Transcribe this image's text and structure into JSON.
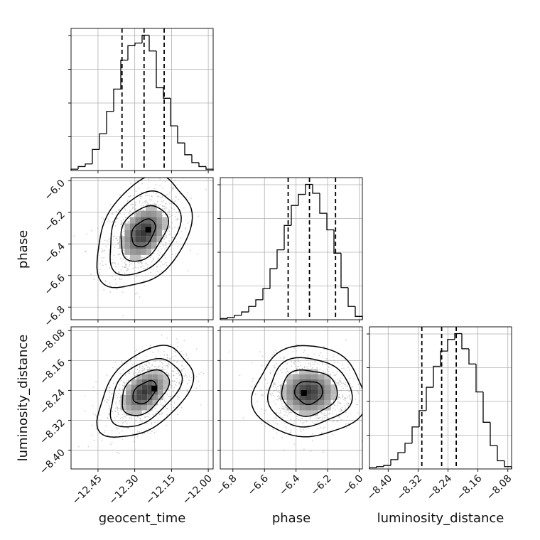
{
  "chart_data": {
    "type": "corner",
    "parameters": [
      "geocent_time",
      "phase",
      "luminosity_distance"
    ],
    "axis_labels": {
      "x": [
        "geocent_time",
        "phase",
        "luminosity_distance"
      ],
      "y_row2": "phase",
      "y_row3": "luminosity_distance"
    },
    "ticks": {
      "geocent_time": {
        "values": [
          -12.45,
          -12.3,
          -12.15,
          -12.0
        ],
        "labels": [
          "−12.45",
          "−12.30",
          "−12.15",
          "−12.00"
        ]
      },
      "phase": {
        "values": [
          -6.8,
          -6.6,
          -6.4,
          -6.2,
          -6.0
        ],
        "labels": [
          "−6.8",
          "−6.6",
          "−6.4",
          "−6.2",
          "−6.0"
        ]
      },
      "luminosity_distance": {
        "values": [
          -8.4,
          -8.32,
          -8.24,
          -8.16,
          -8.08
        ],
        "labels": [
          "−8.40",
          "−8.32",
          "−8.24",
          "−8.16",
          "−8.08"
        ]
      }
    },
    "ranges": {
      "geocent_time": [
        -12.56,
        -11.98
      ],
      "phase": [
        -6.88,
        -5.98
      ],
      "luminosity_distance": [
        -8.45,
        -8.07
      ]
    },
    "histograms": {
      "geocent_time": {
        "edges": [
          -12.56,
          -12.531,
          -12.502,
          -12.473,
          -12.444,
          -12.415,
          -12.386,
          -12.357,
          -12.328,
          -12.299,
          -12.27,
          -12.241,
          -12.212,
          -12.183,
          -12.154,
          -12.125,
          -12.096,
          -12.067,
          -12.038,
          -12.009,
          -11.98
        ],
        "counts": [
          1,
          3,
          5,
          16,
          28,
          45,
          62,
          84,
          95,
          97,
          103,
          91,
          63,
          55,
          34,
          21,
          12,
          6,
          3,
          1
        ],
        "quantiles": [
          -12.352,
          -12.262,
          -12.18
        ]
      },
      "phase": {
        "edges": [
          -6.88,
          -6.835,
          -6.79,
          -6.745,
          -6.7,
          -6.655,
          -6.61,
          -6.565,
          -6.52,
          -6.475,
          -6.43,
          -6.385,
          -6.34,
          -6.295,
          -6.25,
          -6.205,
          -6.16,
          -6.115,
          -6.07,
          -6.025,
          -5.98
        ],
        "counts": [
          1,
          2,
          4,
          7,
          12,
          18,
          28,
          46,
          63,
          85,
          103,
          113,
          122,
          114,
          96,
          81,
          60,
          29,
          12,
          3
        ],
        "quantiles": [
          -6.45,
          -6.315,
          -6.15
        ]
      },
      "luminosity_distance": {
        "edges": [
          -8.45,
          -8.431,
          -8.412,
          -8.393,
          -8.374,
          -8.355,
          -8.336,
          -8.317,
          -8.298,
          -8.279,
          -8.26,
          -8.241,
          -8.222,
          -8.203,
          -8.184,
          -8.165,
          -8.146,
          -8.127,
          -8.108,
          -8.089,
          -8.07
        ],
        "counts": [
          1,
          2,
          3,
          8,
          14,
          22,
          36,
          50,
          70,
          88,
          101,
          111,
          116,
          103,
          90,
          66,
          40,
          20,
          7,
          2
        ],
        "quantiles": [
          -8.31,
          -8.257,
          -8.218
        ]
      }
    },
    "joint": [
      {
        "x": "geocent_time",
        "y": "phase",
        "mean": [
          -12.265,
          -6.33
        ],
        "sd": [
          0.06,
          0.11
        ],
        "rho": 0.35,
        "peak": [
          -12.245,
          -6.31
        ]
      },
      {
        "x": "geocent_time",
        "y": "luminosity_distance",
        "mean": [
          -12.26,
          -8.245
        ],
        "sd": [
          0.06,
          0.038
        ],
        "rho": 0.45,
        "peak": [
          -12.22,
          -8.235
        ]
      },
      {
        "x": "phase",
        "y": "luminosity_distance",
        "mean": [
          -6.32,
          -8.245
        ],
        "sd": [
          0.11,
          0.038
        ],
        "rho": 0.0,
        "peak": [
          -6.35,
          -8.247
        ]
      }
    ],
    "contour_levels_sigma": [
      0.5,
      1.0,
      1.5,
      2.0
    ],
    "grid": true,
    "colors": {
      "line": "#000000",
      "grid": "#b0b0b0",
      "scatter": "#9a9a9a"
    }
  }
}
